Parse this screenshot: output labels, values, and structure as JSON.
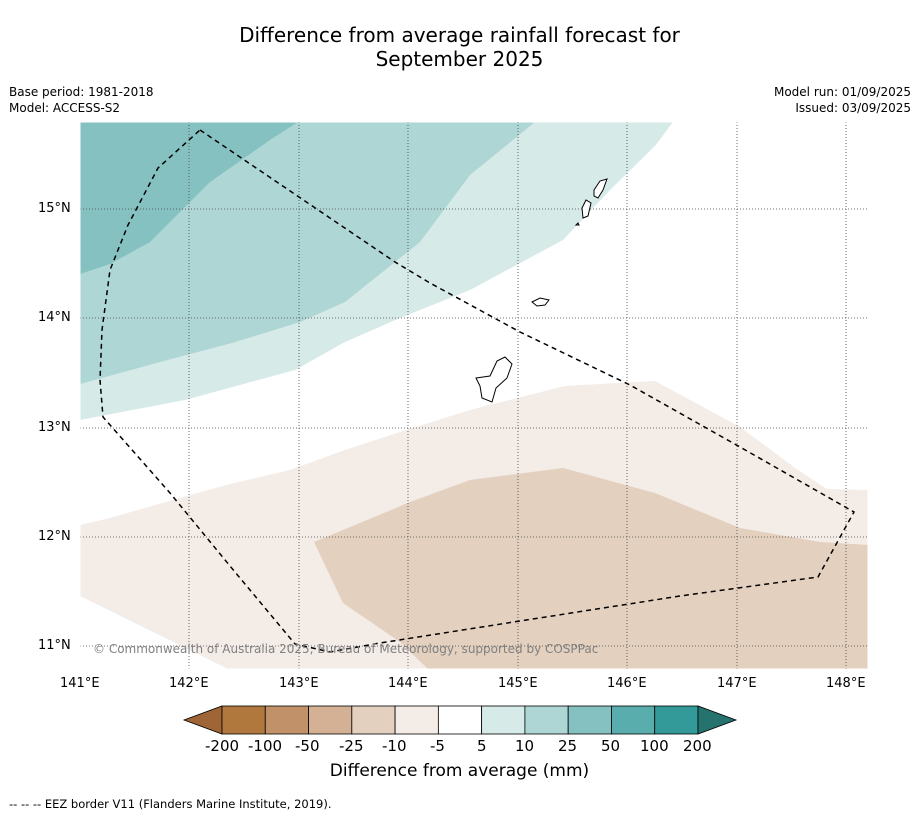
{
  "title_line1": "Difference from average rainfall forecast for",
  "title_line2": "September 2025",
  "info_left": {
    "base_period": "Base period: 1981-2018",
    "model": "Model: ACCESS-S2"
  },
  "info_right": {
    "model_run": "Model run: 01/09/2025",
    "issued": "Issued: 03/09/2025"
  },
  "credit": "© Commonwealth of Australia 2025, Bureau of Meteorology, supported by COSPPac",
  "axes": {
    "lon_ticks": [
      "141°E",
      "142°E",
      "143°E",
      "144°E",
      "145°E",
      "146°E",
      "147°E",
      "148°E"
    ],
    "lat_ticks": [
      "15°N",
      "14°N",
      "13°N",
      "12°N",
      "11°N"
    ]
  },
  "colorbar": {
    "title": "Difference from average (mm)",
    "labels": [
      "-200",
      "-100",
      "-50",
      "-25",
      "-10",
      "-5",
      "5",
      "10",
      "25",
      "50",
      "100",
      "200"
    ],
    "colors": [
      "#9f6537",
      "#b1783d",
      "#c1926a",
      "#d4b094",
      "#e3d0bf",
      "#f4ece7",
      "#ffffff",
      "#d6eae8",
      "#aed6d4",
      "#85c1c1",
      "#5aadad",
      "#339a99",
      "#24736f"
    ]
  },
  "footer": "--  --  -- EEZ border V11 (Flanders Marine Institute, 2019)."
}
